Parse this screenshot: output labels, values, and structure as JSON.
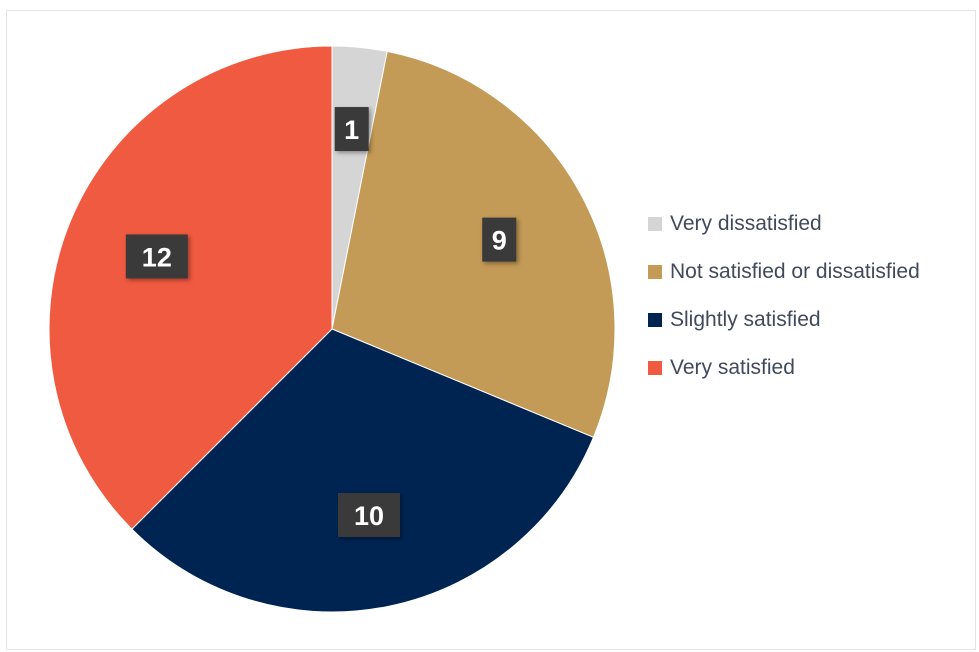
{
  "chart_data": {
    "type": "pie",
    "title": "",
    "categories": [
      "Very dissatisfied",
      "Not satisfied or dissatisfied",
      "Slightly satisfied",
      "Very satisfied"
    ],
    "values": [
      1,
      9,
      10,
      12
    ],
    "colors": [
      "#d5d5d5",
      "#c39a56",
      "#002452",
      "#f05a40"
    ],
    "data_labels": [
      "1",
      "9",
      "10",
      "12"
    ],
    "legend_placement": "right",
    "start_angle": "12 o'clock",
    "direction": "clockwise"
  },
  "legend": {
    "items": [
      {
        "label": "Very dissatisfied",
        "color": "#d5d5d5"
      },
      {
        "label": "Not satisfied or dissatisfied",
        "color": "#c39a56"
      },
      {
        "label": "Slightly satisfied",
        "color": "#002452"
      },
      {
        "label": "Very satisfied",
        "color": "#f05a40"
      }
    ]
  }
}
